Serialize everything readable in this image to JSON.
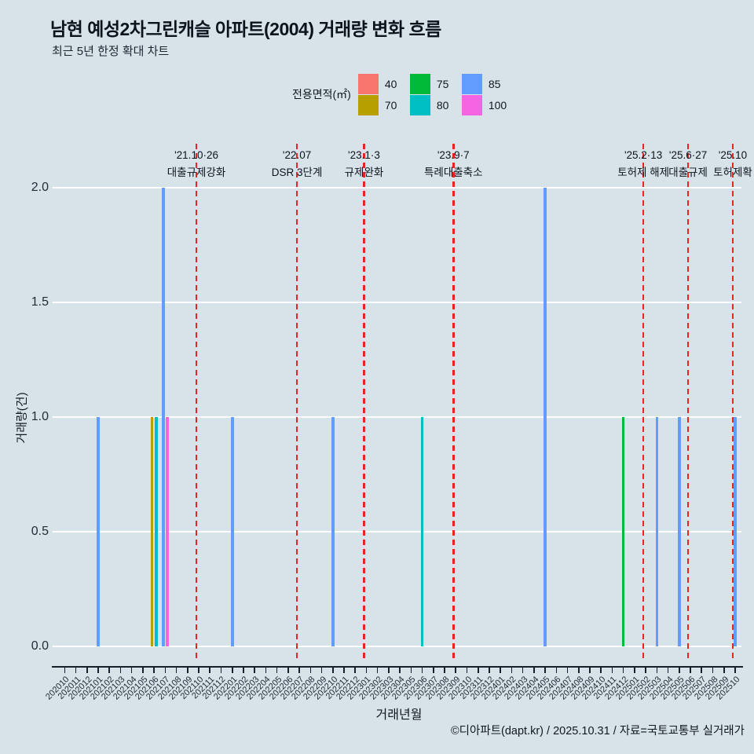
{
  "title": "남현 예성2차그린캐슬 아파트(2004) 거래량 변화 흐름",
  "subtitle": "최근 5년 한정 확대 차트",
  "legend": {
    "title": "전용면적(㎡)",
    "items": [
      {
        "label": "40",
        "color": "#F8766D"
      },
      {
        "label": "70",
        "color": "#B79F00"
      },
      {
        "label": "75",
        "color": "#00BA38"
      },
      {
        "label": "80",
        "color": "#00BFC4"
      },
      {
        "label": "85",
        "color": "#619CFF"
      },
      {
        "label": "100",
        "color": "#F564E3"
      }
    ]
  },
  "chart_data": {
    "type": "bar",
    "title": "남현 예성2차그린캐슬 아파트(2004) 거래량 변화 흐름",
    "xlabel": "거래년월",
    "ylabel": "거래량(건)",
    "ylim": [
      0,
      2
    ],
    "ytick_labels": [
      "0.0",
      "0.5",
      "1.0",
      "1.5",
      "2.0"
    ],
    "ytick_values": [
      0,
      0.5,
      1,
      1.5,
      2
    ],
    "grid": "white-horizontal-majors",
    "legend_position": "top-center",
    "categories": [
      "202010",
      "202011",
      "202012",
      "202101",
      "202102",
      "202103",
      "202104",
      "202105",
      "202106",
      "202107",
      "202108",
      "202109",
      "202110",
      "202111",
      "202112",
      "202201",
      "202202",
      "202203",
      "202204",
      "202205",
      "202206",
      "202207",
      "202208",
      "202209",
      "202210",
      "202211",
      "202212",
      "202301",
      "202302",
      "202303",
      "202304",
      "202305",
      "202306",
      "202307",
      "202308",
      "202309",
      "202310",
      "202311",
      "202312",
      "202401",
      "202402",
      "202403",
      "202404",
      "202405",
      "202406",
      "202407",
      "202408",
      "202409",
      "202410",
      "202411",
      "202412",
      "202501",
      "202502",
      "202503",
      "202504",
      "202505",
      "202506",
      "202507",
      "202508",
      "202509",
      "202510"
    ],
    "series_key": "전용면적(㎡)",
    "bars": [
      {
        "month": "202101",
        "area": "85",
        "value": 1
      },
      {
        "month": "202106",
        "area": "70",
        "value": 1
      },
      {
        "month": "202106",
        "area": "80",
        "value": 1
      },
      {
        "month": "202107",
        "area": "85",
        "value": 2
      },
      {
        "month": "202107",
        "area": "100",
        "value": 1
      },
      {
        "month": "202201",
        "area": "85",
        "value": 1
      },
      {
        "month": "202210",
        "area": "85",
        "value": 1
      },
      {
        "month": "202306",
        "area": "80",
        "value": 1
      },
      {
        "month": "202405",
        "area": "85",
        "value": 2
      },
      {
        "month": "202412",
        "area": "75",
        "value": 1
      },
      {
        "month": "202503",
        "area": "85",
        "value": 1
      },
      {
        "month": "202505",
        "area": "85",
        "value": 1
      },
      {
        "month": "202510",
        "area": "85",
        "value": 1
      }
    ],
    "event_lines": [
      {
        "month": "202110",
        "date": "'21.10·26",
        "label": "대출규제강화"
      },
      {
        "month": "202207",
        "date": "'22.07",
        "label": "DSR 3단계"
      },
      {
        "month": "202301",
        "date": "'23.1·3",
        "label": "규제완화"
      },
      {
        "month": "202309",
        "date": "'23.9·7",
        "label": "특례대출축소"
      },
      {
        "month": "202502",
        "date": "'25.2·13",
        "label": "토허제 해제"
      },
      {
        "month": "202506",
        "date": "'25.6·27",
        "label": "대출규제"
      },
      {
        "month": "202510",
        "date": "'25.10",
        "label": "토허제확"
      }
    ]
  },
  "axis": {
    "x_title": "거래년월",
    "y_title": "거래량(건)"
  },
  "footer": "©디아파트(dapt.kr) / 2025.10.31 / 자료=국토교통부 실거래가",
  "colors": {
    "background": "#d8e2e9",
    "gridline": "#ffffff",
    "event_line": "#e9261c",
    "axis": "#15202b",
    "text": "#101820"
  }
}
